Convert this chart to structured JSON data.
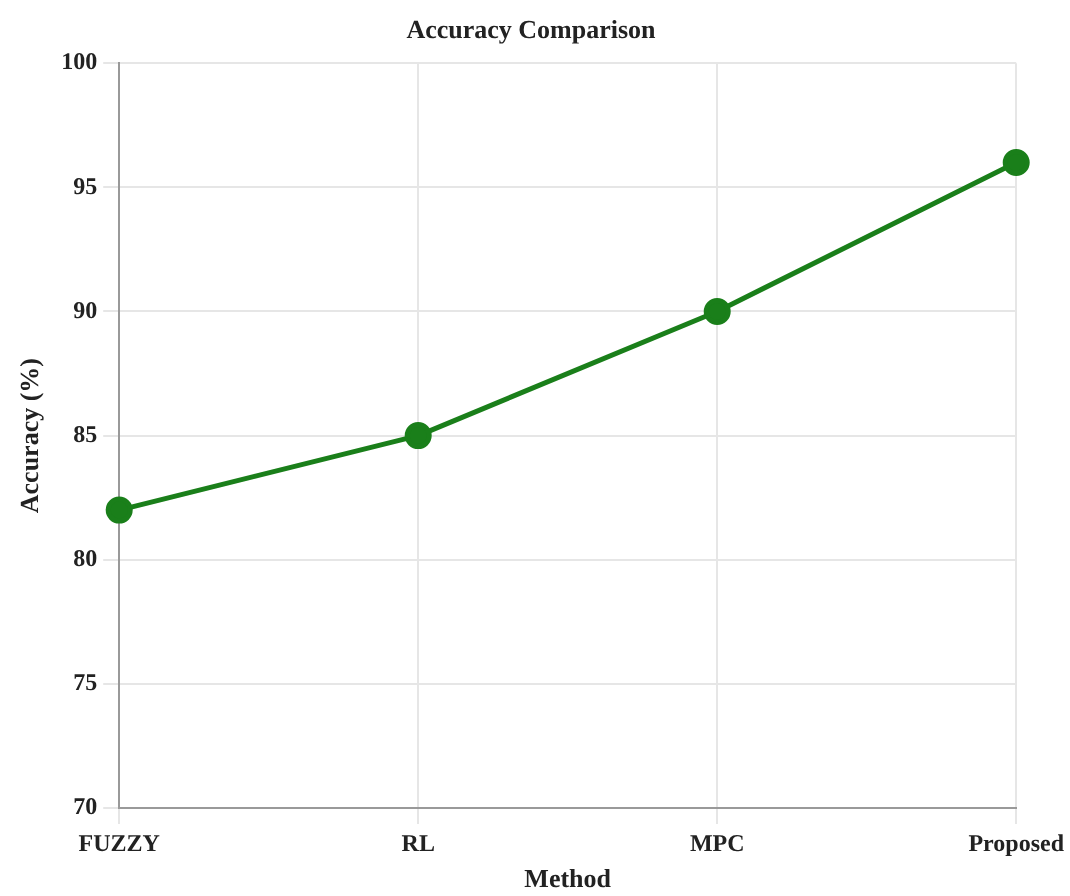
{
  "chart_data": {
    "type": "line",
    "title": "Accuracy Comparison",
    "xlabel": "Method",
    "ylabel": "Accuracy (%)",
    "categories": [
      "FUZZY",
      "RL",
      "MPC",
      "Proposed"
    ],
    "series": [
      {
        "color": "#1a7f1a",
        "values": [
          82,
          85,
          90,
          96
        ]
      }
    ],
    "ylim": [
      70,
      100
    ],
    "yticks": [
      70,
      75,
      80,
      85,
      90,
      95,
      100
    ],
    "grid": true,
    "marker": "circle",
    "line_style": "solid",
    "legend": false
  }
}
